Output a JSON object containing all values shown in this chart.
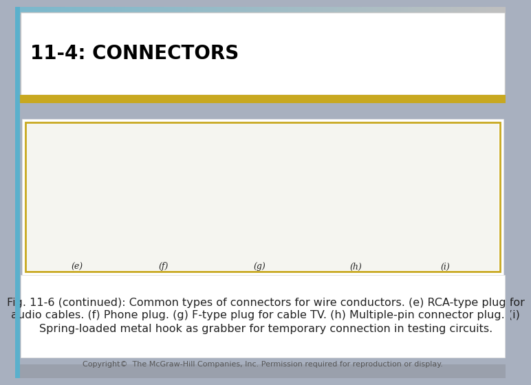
{
  "title": "11-4: CONNECTORS",
  "title_fontsize": 20,
  "title_fontweight": "bold",
  "title_color": "#000000",
  "bg_color": "#a8b0bf",
  "header_bg": "#ffffff",
  "image_border_color": "#c8a820",
  "caption_line1": "Fig. 11-6 (continued): Common types of connectors for wire conductors. (e) RCA-type plug for",
  "caption_line2": "audio cables. (f) Phone plug. (g) F-type plug for cable TV. (h) Multiple-pin connector plug. (i)",
  "caption_line3": "Spring-loaded metal hook as grabber for temporary connection in testing circuits.",
  "caption_fontsize": 11.5,
  "copyright_text": "Copyright©  The McGraw-Hill Companies, Inc. Permission required for reproduction or display.",
  "copyright_fontsize": 8,
  "labels": [
    "(e)",
    "(f)",
    "(g)",
    "(h)",
    "(i)"
  ],
  "top_bar_color": "#c0bfbf",
  "top_teal_color": "#7ab8cc",
  "gold_bar_color": "#c8a820",
  "left_accent_color": "#5ab0cc",
  "bottom_bg_color": "#9aa0ac"
}
